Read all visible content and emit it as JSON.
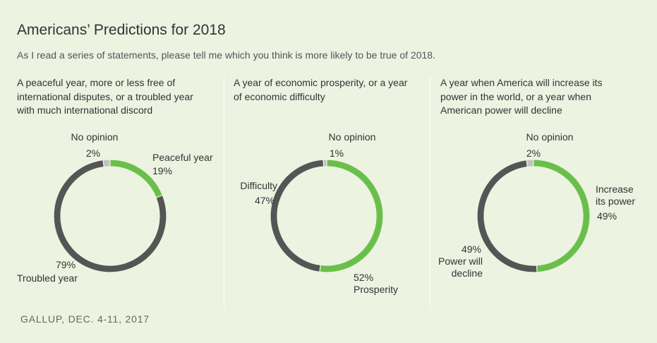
{
  "title": "Americans’ Predictions for 2018",
  "subtitle": "As I read a series of statements, please tell me which you think is more likely to be true of 2018.",
  "source": "GALLUP, DEC. 4-11, 2017",
  "colors": {
    "positive": "#6abf4b",
    "negative": "#555555",
    "no_opinion": "#c3c3c3",
    "background": "#ecf3e1"
  },
  "chart_data": [
    {
      "type": "pie",
      "donut": true,
      "question": [
        "A peaceful year, more or less free of",
        "international disputes, or a troubled year",
        "with much international discord"
      ],
      "slices": [
        {
          "name": "No opinion",
          "value": 2,
          "label": "2%",
          "color": "#c3c3c3"
        },
        {
          "name": "Peaceful year",
          "value": 19,
          "label": "19%",
          "color": "#6abf4b"
        },
        {
          "name": "Troubled year",
          "value": 79,
          "label": "79%",
          "color": "#555555"
        }
      ]
    },
    {
      "type": "pie",
      "donut": true,
      "question": [
        "A year of economic prosperity, or a year",
        "of economic difficulty"
      ],
      "slices": [
        {
          "name": "No opinion",
          "value": 1,
          "label": "1%",
          "color": "#c3c3c3"
        },
        {
          "name": "Prosperity",
          "value": 52,
          "label": "52%",
          "color": "#6abf4b"
        },
        {
          "name": "Difficulty",
          "value": 47,
          "label": "47%",
          "color": "#555555"
        }
      ]
    },
    {
      "type": "pie",
      "donut": true,
      "question": [
        "A year when America will increase its",
        "power in the world, or a year when",
        "American power will decline"
      ],
      "slices": [
        {
          "name": "No opinion",
          "value": 2,
          "label": "2%",
          "color": "#c3c3c3"
        },
        {
          "name": "Increase its power",
          "value": 49,
          "label": "49%",
          "color": "#6abf4b"
        },
        {
          "name": "Power will decline",
          "value": 49,
          "label": "49%",
          "color": "#555555"
        }
      ]
    }
  ]
}
